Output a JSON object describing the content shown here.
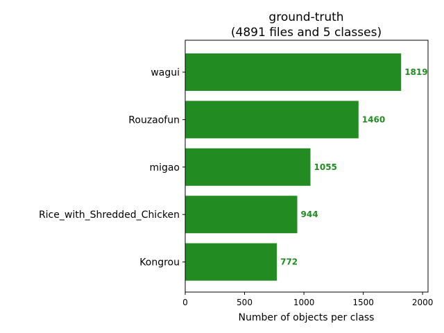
{
  "chart_data": {
    "type": "bar",
    "orientation": "horizontal",
    "title_line1": "ground-truth",
    "title_line2": "(4891 files and 5 classes)",
    "xlabel": "Number of objects per class",
    "ylabel": "",
    "categories": [
      "wagui",
      "Rouzaofun",
      "migao",
      "Rice_with_Shredded_Chicken",
      "Kongrou"
    ],
    "values": [
      1819,
      1460,
      1055,
      944,
      772
    ],
    "value_labels": [
      "1819",
      "1460",
      "1055",
      "944",
      "772"
    ],
    "xlim": [
      0,
      2046
    ],
    "xticks": [
      0,
      500,
      1000,
      1500,
      2000
    ],
    "xtick_labels": [
      "0",
      "500",
      "1000",
      "1500",
      "2000"
    ],
    "grid": false,
    "legend": "none",
    "bar_color": "#228b22",
    "label_color": "#228b22"
  }
}
